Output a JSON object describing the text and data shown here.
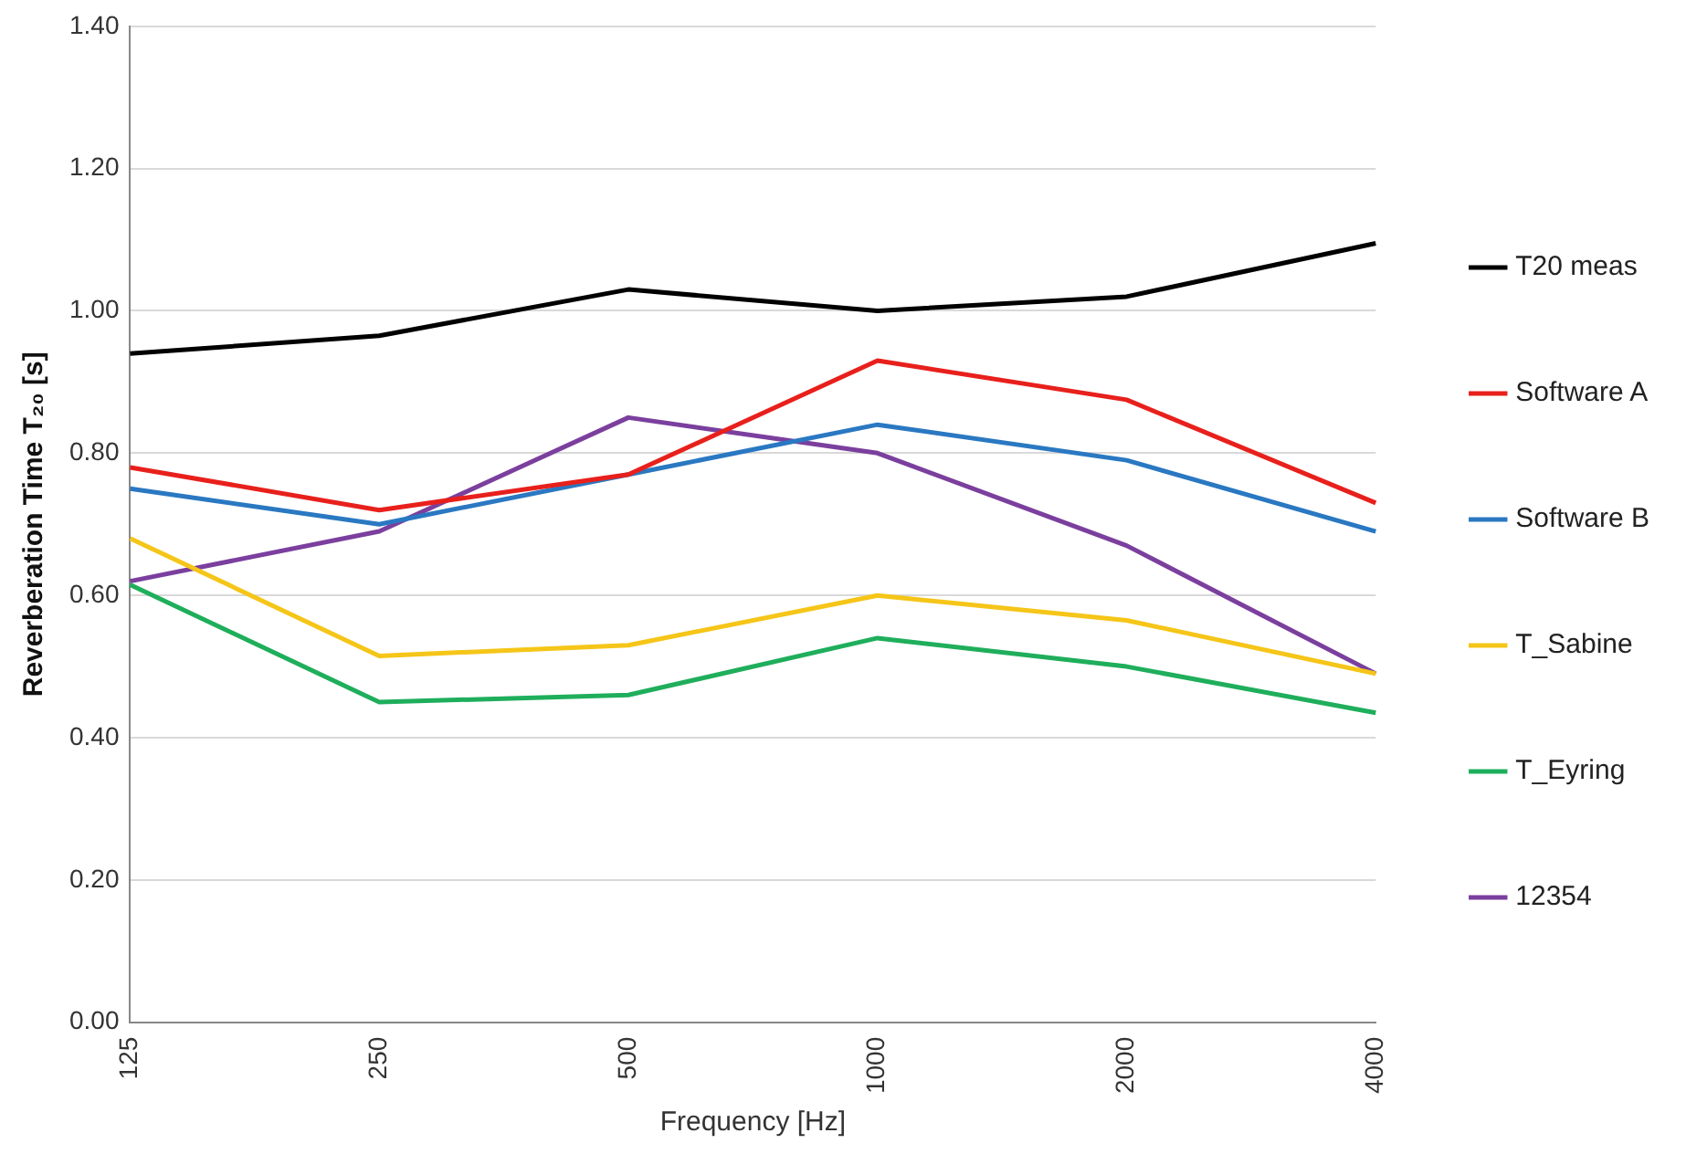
{
  "chart_data": {
    "type": "line",
    "xlabel": "Frequency [Hz]",
    "ylabel": "Reverberation Time T₂₀ [s]",
    "categories": [
      "125",
      "250",
      "500",
      "1000",
      "2000",
      "4000"
    ],
    "ylim": [
      0,
      1.4
    ],
    "yticks": [
      {
        "value": 0,
        "label": "0.00"
      },
      {
        "value": 0.2,
        "label": "0.20"
      },
      {
        "value": 0.4,
        "label": "0.40"
      },
      {
        "value": 0.6,
        "label": "0.60"
      },
      {
        "value": 0.8,
        "label": "0.80"
      },
      {
        "value": 1,
        "label": "1.00"
      },
      {
        "value": 1.2,
        "label": "1.20"
      },
      {
        "value": 1.4,
        "label": "1.40"
      }
    ],
    "grid": "y",
    "legend": "right",
    "marker": "none",
    "series": [
      {
        "name": "T20 meas",
        "color": "#000000",
        "values": [
          0.94,
          0.965,
          1.03,
          1.0,
          1.02,
          1.095
        ]
      },
      {
        "name": "Software A",
        "color": "#e8201c",
        "values": [
          0.78,
          0.72,
          0.77,
          0.93,
          0.875,
          0.73
        ]
      },
      {
        "name": "Software B",
        "color": "#2a78c2",
        "values": [
          0.75,
          0.7,
          0.77,
          0.84,
          0.79,
          0.69
        ]
      },
      {
        "name": "T_Sabine",
        "color": "#f5c518",
        "values": [
          0.68,
          0.515,
          0.53,
          0.6,
          0.565,
          0.49
        ]
      },
      {
        "name": "T_Eyring",
        "color": "#1fae5b",
        "values": [
          0.615,
          0.45,
          0.46,
          0.54,
          0.5,
          0.435
        ]
      },
      {
        "name": "12354",
        "color": "#7b3f9e",
        "values": [
          0.62,
          0.69,
          0.85,
          0.8,
          0.67,
          0.49
        ]
      }
    ]
  }
}
